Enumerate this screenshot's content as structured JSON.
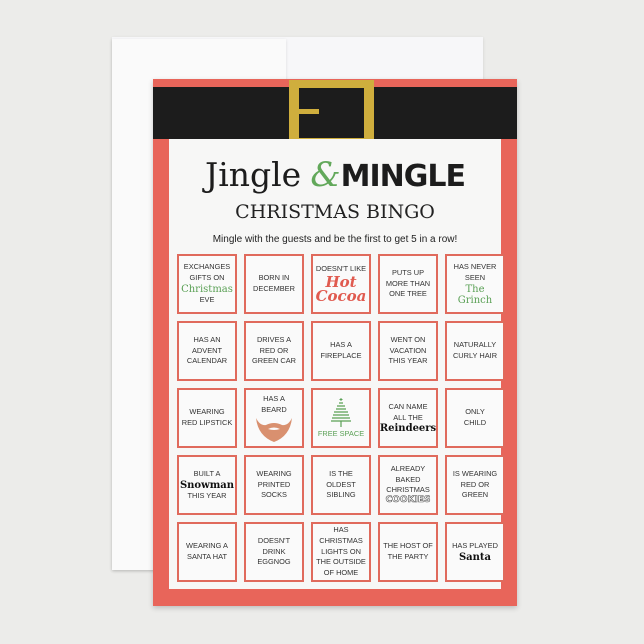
{
  "header": {
    "title_left": "Jingle",
    "title_amp": "&",
    "title_right": "MINGLE",
    "subtitle": "CHRISTMAS BINGO",
    "instructions": "Mingle with the guests and be the first to get 5 in a row!"
  },
  "colors": {
    "card_border": "#e8655a",
    "belt": "#1c1c1c",
    "buckle": "#cfae3d",
    "accent_green": "#62a85a"
  },
  "grid": [
    [
      {
        "lines": [
          "EXCHANGES",
          "GIFTS ON"
        ],
        "special": "Christmas",
        "style": "g",
        "after": [
          "EVE"
        ]
      },
      {
        "lines": [
          "BORN IN",
          "DECEMBER"
        ]
      },
      {
        "lines": [
          "DOESN'T LIKE"
        ],
        "special": "Hot Cocoa",
        "style": "r"
      },
      {
        "lines": [
          "PUTS UP",
          "MORE THAN",
          "ONE TREE"
        ]
      },
      {
        "lines": [
          "HAS NEVER",
          "SEEN"
        ],
        "special": "The Grinch",
        "style": "g"
      }
    ],
    [
      {
        "lines": [
          "HAS AN",
          "ADVENT",
          "CALENDAR"
        ]
      },
      {
        "lines": [
          "DRIVES A",
          "RED OR",
          "GREEN CAR"
        ]
      },
      {
        "lines": [
          "HAS A",
          "FIREPLACE"
        ]
      },
      {
        "lines": [
          "WENT ON",
          "VACATION",
          "THIS YEAR"
        ]
      },
      {
        "lines": [
          "NATURALLY",
          "CURLY HAIR"
        ]
      }
    ],
    [
      {
        "lines": [
          "WEARING",
          "RED LIPSTICK"
        ]
      },
      {
        "lines": [
          "HAS A",
          "BEARD"
        ],
        "icon": "beard"
      },
      {
        "lines": [],
        "icon": "tree",
        "after": [
          "FREE SPACE"
        ],
        "free": true
      },
      {
        "lines": [
          "CAN NAME",
          "ALL THE"
        ],
        "special": "Reindeers",
        "style": "b"
      },
      {
        "lines": [
          "ONLY",
          "CHILD"
        ]
      }
    ],
    [
      {
        "lines": [
          "BUILT A"
        ],
        "special": "Snowman",
        "style": "b",
        "after": [
          "THIS YEAR"
        ]
      },
      {
        "lines": [
          "WEARING",
          "PRINTED",
          "SOCKS"
        ]
      },
      {
        "lines": [
          "IS THE",
          "OLDEST",
          "SIBLING"
        ]
      },
      {
        "lines": [
          "ALREADY",
          "BAKED",
          "CHRISTMAS"
        ],
        "special": "COOKIES",
        "style": "o"
      },
      {
        "lines": [
          "IS WEARING",
          "RED OR",
          "GREEN"
        ]
      }
    ],
    [
      {
        "lines": [
          "WEARING A",
          "SANTA HAT"
        ]
      },
      {
        "lines": [
          "DOESN'T",
          "DRINK",
          "EGGNOG"
        ]
      },
      {
        "lines": [
          "HAS",
          "CHRISTMAS",
          "LIGHTS ON",
          "THE OUTSIDE",
          "OF HOME"
        ]
      },
      {
        "lines": [
          "THE HOST OF",
          "THE PARTY"
        ]
      },
      {
        "lines": [
          "HAS PLAYED"
        ],
        "special": "Santa",
        "style": "b"
      }
    ]
  ]
}
